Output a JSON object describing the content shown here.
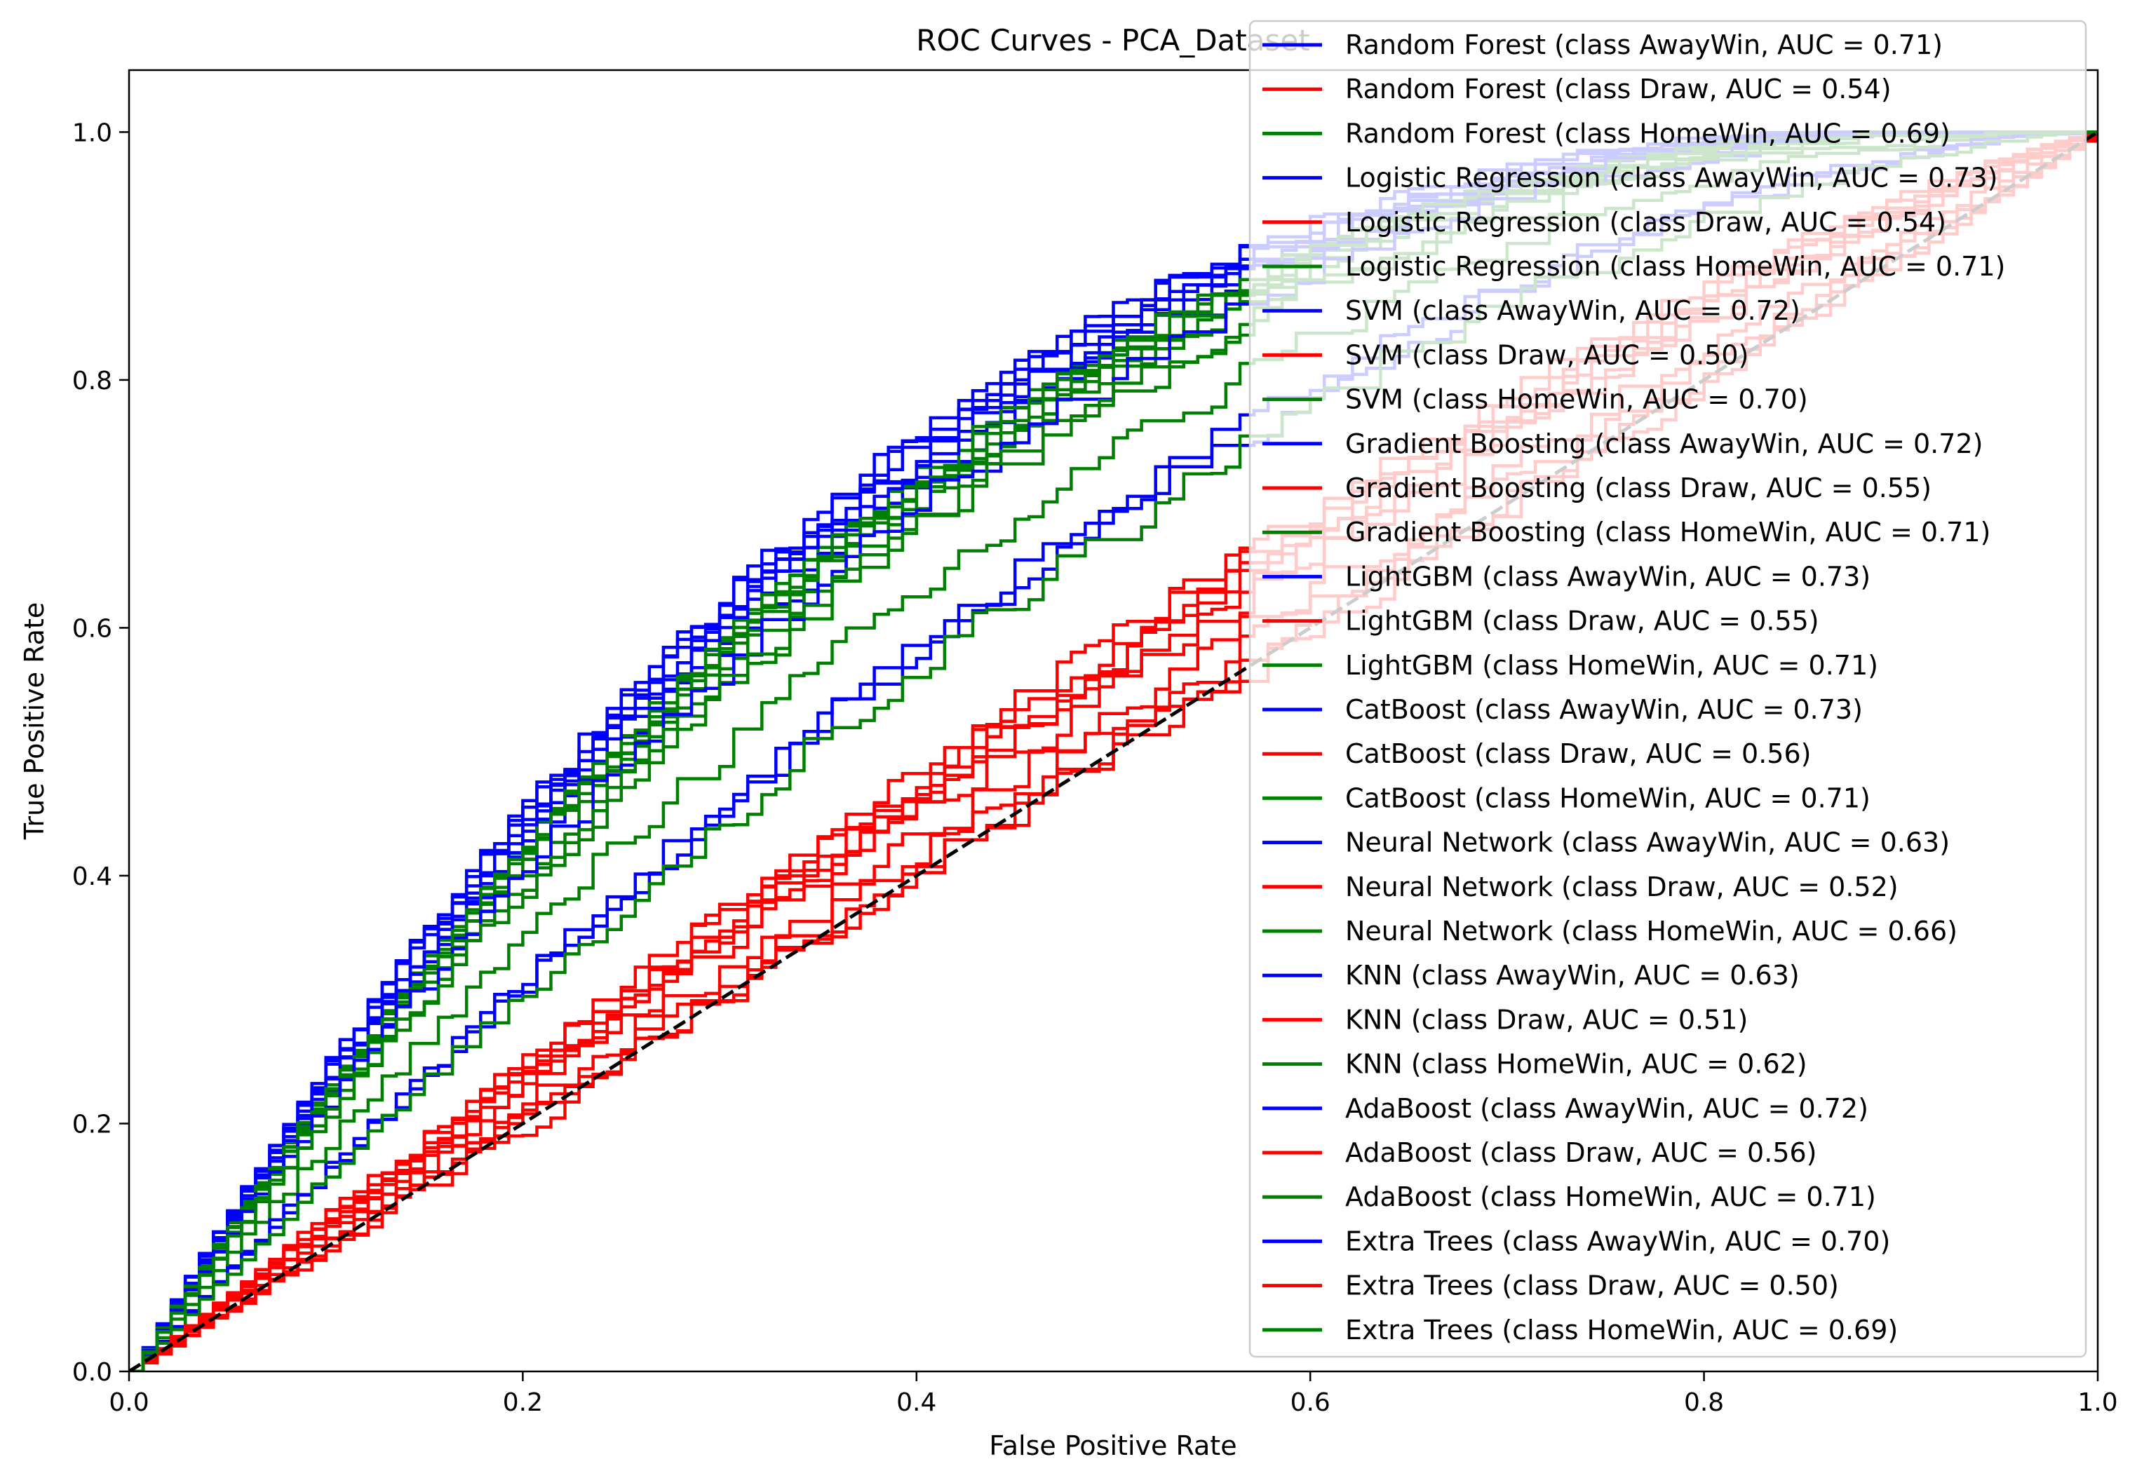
{
  "chart_data": {
    "type": "line",
    "title": "ROC Curves - PCA_Dataset",
    "xlabel": "False Positive Rate",
    "ylabel": "True Positive Rate",
    "xlim": [
      0.0,
      1.0
    ],
    "ylim": [
      0.0,
      1.05
    ],
    "x_ticks": [
      0.0,
      0.2,
      0.4,
      0.6,
      0.8,
      1.0
    ],
    "y_ticks": [
      0.0,
      0.2,
      0.4,
      0.6,
      0.8,
      1.0
    ],
    "x_tick_labels": [
      "0.0",
      "0.2",
      "0.4",
      "0.6",
      "0.8",
      "1.0"
    ],
    "y_tick_labels": [
      "0.0",
      "0.2",
      "0.4",
      "0.6",
      "0.8",
      "1.0"
    ],
    "grid": false,
    "legend_position": "top-right",
    "class_colors": {
      "AwayWin": "#0000ff",
      "Draw": "#ff0000",
      "HomeWin": "#008000"
    },
    "chance_line": {
      "x": [
        0,
        1
      ],
      "y": [
        0,
        1
      ],
      "color": "#000000",
      "style": "dashed"
    },
    "series": [
      {
        "name": "Random Forest (class AwayWin, AUC = 0.71)",
        "model": "Random Forest",
        "class": "AwayWin",
        "auc": 0.71,
        "color": "#0000ff"
      },
      {
        "name": "Random Forest (class Draw, AUC = 0.54)",
        "model": "Random Forest",
        "class": "Draw",
        "auc": 0.54,
        "color": "#ff0000"
      },
      {
        "name": "Random Forest (class HomeWin, AUC = 0.69)",
        "model": "Random Forest",
        "class": "HomeWin",
        "auc": 0.69,
        "color": "#008000"
      },
      {
        "name": "Logistic Regression (class AwayWin, AUC = 0.73)",
        "model": "Logistic Regression",
        "class": "AwayWin",
        "auc": 0.73,
        "color": "#0000ff"
      },
      {
        "name": "Logistic Regression (class Draw, AUC = 0.54)",
        "model": "Logistic Regression",
        "class": "Draw",
        "auc": 0.54,
        "color": "#ff0000"
      },
      {
        "name": "Logistic Regression (class HomeWin, AUC = 0.71)",
        "model": "Logistic Regression",
        "class": "HomeWin",
        "auc": 0.71,
        "color": "#008000"
      },
      {
        "name": "SVM (class AwayWin, AUC = 0.72)",
        "model": "SVM",
        "class": "AwayWin",
        "auc": 0.72,
        "color": "#0000ff"
      },
      {
        "name": "SVM (class Draw, AUC = 0.50)",
        "model": "SVM",
        "class": "Draw",
        "auc": 0.5,
        "color": "#ff0000"
      },
      {
        "name": "SVM (class HomeWin, AUC = 0.70)",
        "model": "SVM",
        "class": "HomeWin",
        "auc": 0.7,
        "color": "#008000"
      },
      {
        "name": "Gradient Boosting (class AwayWin, AUC = 0.72)",
        "model": "Gradient Boosting",
        "class": "AwayWin",
        "auc": 0.72,
        "color": "#0000ff"
      },
      {
        "name": "Gradient Boosting (class Draw, AUC = 0.55)",
        "model": "Gradient Boosting",
        "class": "Draw",
        "auc": 0.55,
        "color": "#ff0000"
      },
      {
        "name": "Gradient Boosting (class HomeWin, AUC = 0.71)",
        "model": "Gradient Boosting",
        "class": "HomeWin",
        "auc": 0.71,
        "color": "#008000"
      },
      {
        "name": "LightGBM (class AwayWin, AUC = 0.73)",
        "model": "LightGBM",
        "class": "AwayWin",
        "auc": 0.73,
        "color": "#0000ff"
      },
      {
        "name": "LightGBM (class Draw, AUC = 0.55)",
        "model": "LightGBM",
        "class": "Draw",
        "auc": 0.55,
        "color": "#ff0000"
      },
      {
        "name": "LightGBM (class HomeWin, AUC = 0.71)",
        "model": "LightGBM",
        "class": "HomeWin",
        "auc": 0.71,
        "color": "#008000"
      },
      {
        "name": "CatBoost (class AwayWin, AUC = 0.73)",
        "model": "CatBoost",
        "class": "AwayWin",
        "auc": 0.73,
        "color": "#0000ff"
      },
      {
        "name": "CatBoost (class Draw, AUC = 0.56)",
        "model": "CatBoost",
        "class": "Draw",
        "auc": 0.56,
        "color": "#ff0000"
      },
      {
        "name": "CatBoost (class HomeWin, AUC = 0.71)",
        "model": "CatBoost",
        "class": "HomeWin",
        "auc": 0.71,
        "color": "#008000"
      },
      {
        "name": "Neural Network (class AwayWin, AUC = 0.63)",
        "model": "Neural Network",
        "class": "AwayWin",
        "auc": 0.63,
        "color": "#0000ff"
      },
      {
        "name": "Neural Network (class Draw, AUC = 0.52)",
        "model": "Neural Network",
        "class": "Draw",
        "auc": 0.52,
        "color": "#ff0000"
      },
      {
        "name": "Neural Network (class HomeWin, AUC = 0.66)",
        "model": "Neural Network",
        "class": "HomeWin",
        "auc": 0.66,
        "color": "#008000"
      },
      {
        "name": "KNN (class AwayWin, AUC = 0.63)",
        "model": "KNN",
        "class": "AwayWin",
        "auc": 0.63,
        "color": "#0000ff"
      },
      {
        "name": "KNN (class Draw, AUC = 0.51)",
        "model": "KNN",
        "class": "Draw",
        "auc": 0.51,
        "color": "#ff0000"
      },
      {
        "name": "KNN (class HomeWin, AUC = 0.62)",
        "model": "KNN",
        "class": "HomeWin",
        "auc": 0.62,
        "color": "#008000"
      },
      {
        "name": "AdaBoost (class AwayWin, AUC = 0.72)",
        "model": "AdaBoost",
        "class": "AwayWin",
        "auc": 0.72,
        "color": "#0000ff"
      },
      {
        "name": "AdaBoost (class Draw, AUC = 0.56)",
        "model": "AdaBoost",
        "class": "Draw",
        "auc": 0.56,
        "color": "#ff0000"
      },
      {
        "name": "AdaBoost (class HomeWin, AUC = 0.71)",
        "model": "AdaBoost",
        "class": "HomeWin",
        "auc": 0.71,
        "color": "#008000"
      },
      {
        "name": "Extra Trees (class AwayWin, AUC = 0.70)",
        "model": "Extra Trees",
        "class": "AwayWin",
        "auc": 0.7,
        "color": "#0000ff"
      },
      {
        "name": "Extra Trees (class Draw, AUC = 0.50)",
        "model": "Extra Trees",
        "class": "Draw",
        "auc": 0.5,
        "color": "#ff0000"
      },
      {
        "name": "Extra Trees (class HomeWin, AUC = 0.69)",
        "model": "Extra Trees",
        "class": "HomeWin",
        "auc": 0.69,
        "color": "#008000"
      }
    ]
  }
}
